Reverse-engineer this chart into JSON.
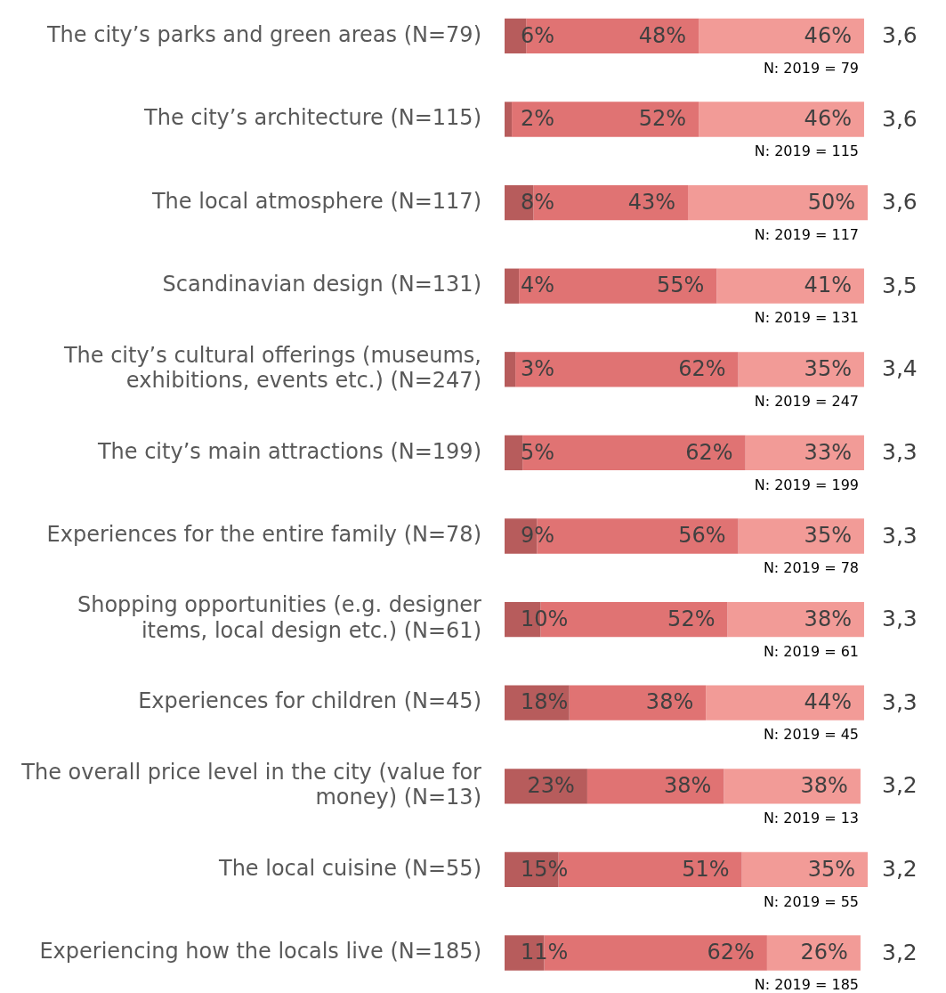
{
  "chart_data": {
    "type": "bar",
    "orientation": "horizontal",
    "stacked": true,
    "tick_labels": "y",
    "grid": false,
    "legend": false,
    "xlim": [
      0,
      101
    ],
    "categories": [
      "The city’s parks and green areas (N=79)",
      "The city’s architecture (N=115)",
      "The local atmosphere (N=117)",
      "Scandinavian design (N=131)",
      "The city’s cultural offerings (museums, exhibitions, events etc.) (N=247)",
      "The city’s main attractions (N=199)",
      "Experiences for the entire family (N=78)",
      "Shopping opportunities (e.g. designer items, local design etc.) (N=61)",
      "Experiences for children (N=45)",
      "The overall price level in the city (value for money) (N=13)",
      "The local cuisine (N=55)",
      "Experiencing how the locals live (N=185)"
    ],
    "series": [
      {
        "color": "#b75c5c",
        "values": [
          6,
          2,
          8,
          4,
          3,
          5,
          9,
          10,
          18,
          23,
          15,
          11
        ],
        "value_labels": [
          "6%",
          "2%",
          "8%",
          "4%",
          "3%",
          "5%",
          "9%",
          "10%",
          "18%",
          "23%",
          "15%",
          "11%"
        ]
      },
      {
        "color": "#e07373",
        "values": [
          48,
          52,
          43,
          55,
          62,
          62,
          56,
          52,
          38,
          38,
          51,
          62
        ],
        "value_labels": [
          "48%",
          "52%",
          "43%",
          "55%",
          "62%",
          "62%",
          "56%",
          "52%",
          "38%",
          "38%",
          "51%",
          "62%"
        ]
      },
      {
        "color": "#f29b97",
        "values": [
          46,
          46,
          50,
          41,
          35,
          33,
          35,
          38,
          44,
          38,
          35,
          26
        ],
        "value_labels": [
          "46%",
          "46%",
          "50%",
          "41%",
          "35%",
          "33%",
          "35%",
          "38%",
          "44%",
          "38%",
          "35%",
          "26%"
        ]
      }
    ],
    "annotations": [
      "3,6",
      "N: 2019 = 79",
      "3,6",
      "N: 2019 = 115",
      "3,6",
      "N: 2019 = 117",
      "3,5",
      "N: 2019 = 131",
      "3,4",
      "N: 2019 = 247",
      "3,3",
      "N: 2019 = 199",
      "3,3",
      "N: 2019 = 78",
      "3,3",
      "N: 2019 = 61",
      "3,3",
      "N: 2019 = 45",
      "3,2",
      "N: 2019 = 13",
      "3,2",
      "N: 2019 = 55",
      "3,2",
      "N: 2019 = 185"
    ]
  }
}
